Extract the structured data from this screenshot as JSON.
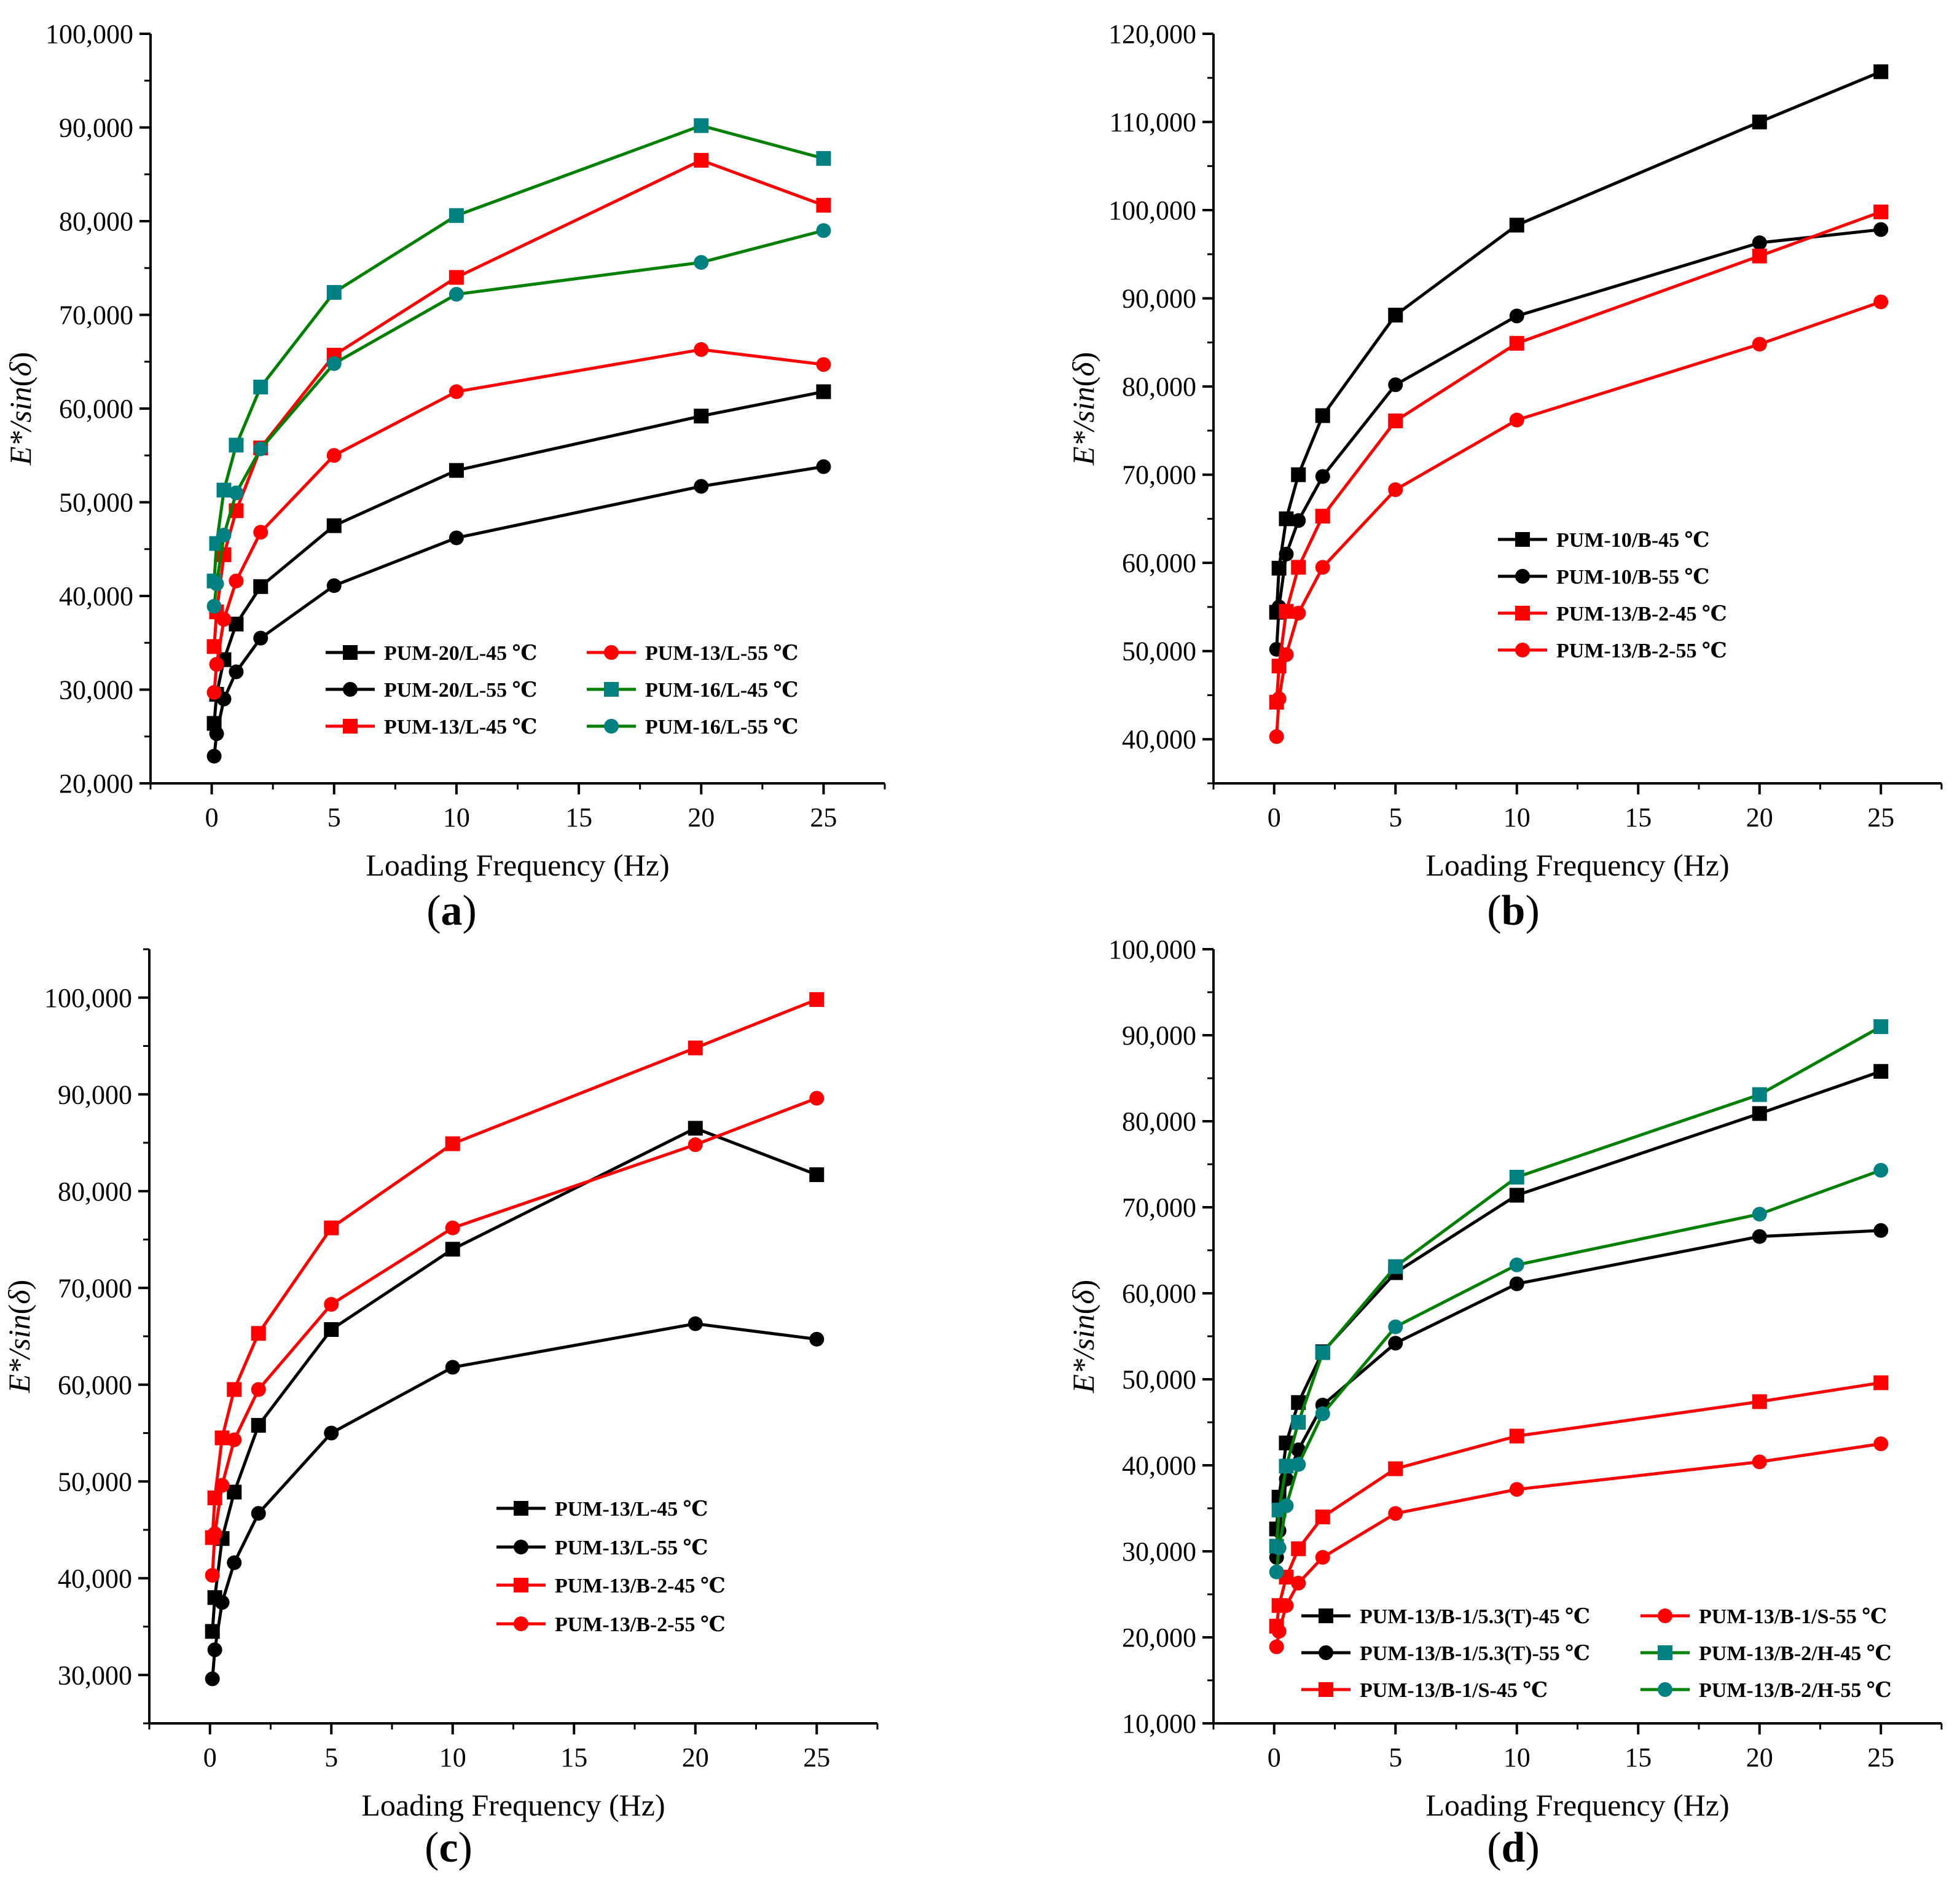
{
  "colors": {
    "black": "#000000",
    "red": "#ff0000",
    "green": "#008000",
    "teal": "#008080"
  },
  "chart_data": [
    {
      "type": "line",
      "caption_letter": "a",
      "xlabel": "Loading Frequency (Hz)",
      "ylabel": "E*/sin(δ)",
      "ylabel_parts": [
        "E*/",
        "sin",
        "(",
        "δ",
        ")"
      ],
      "xlim": [
        -2.5,
        27.5
      ],
      "ylim": [
        20000,
        100000
      ],
      "xticks": [
        0,
        5,
        10,
        15,
        20,
        25
      ],
      "xtick_labels": [
        "0",
        "5",
        "10",
        "15",
        "20",
        "25"
      ],
      "yticks": [
        20000,
        30000,
        40000,
        50000,
        60000,
        70000,
        80000,
        90000,
        100000
      ],
      "ytick_labels": [
        "20,000",
        "30,000",
        "40,000",
        "50,000",
        "60,000",
        "70,000",
        "80,000",
        "90,000",
        "100,000"
      ],
      "legend_placement": "lower-right, two columns",
      "series": [
        {
          "name": "PUM-20/L-45 ℃",
          "color": "#000000",
          "line": "#000000",
          "marker": "square",
          "x": [
            0.1,
            0.2,
            0.5,
            1,
            2,
            5,
            10,
            20,
            25
          ],
          "values": [
            26400,
            29500,
            33200,
            37000,
            41000,
            47500,
            53400,
            59200,
            61800
          ]
        },
        {
          "name": "PUM-20/L-55 ℃",
          "color": "#000000",
          "line": "#000000",
          "marker": "circle",
          "x": [
            0.1,
            0.2,
            0.5,
            1,
            2,
            5,
            10,
            20,
            25
          ],
          "values": [
            22900,
            25300,
            29000,
            31900,
            35500,
            41100,
            46200,
            51700,
            53800
          ]
        },
        {
          "name": "PUM-13/L-45 ℃",
          "color": "#ff0000",
          "line": "#ff0000",
          "marker": "square",
          "x": [
            0.1,
            0.2,
            0.5,
            1,
            2,
            5,
            10,
            20,
            25
          ],
          "values": [
            34600,
            38300,
            44400,
            49100,
            55800,
            65700,
            74000,
            86500,
            81700
          ]
        },
        {
          "name": "PUM-13/L-55 ℃",
          "color": "#ff0000",
          "line": "#ff0000",
          "marker": "circle",
          "x": [
            0.1,
            0.2,
            0.5,
            1,
            2,
            5,
            10,
            20,
            25
          ],
          "values": [
            29700,
            32700,
            37500,
            41600,
            46800,
            55000,
            61800,
            66300,
            64700
          ]
        },
        {
          "name": "PUM-16/L-45 ℃",
          "color": "#008080",
          "line": "#008000",
          "marker": "square",
          "x": [
            0.1,
            0.2,
            0.5,
            1,
            2,
            5,
            10,
            20,
            25
          ],
          "values": [
            41600,
            45600,
            51300,
            56100,
            62300,
            72400,
            80600,
            90200,
            86700
          ]
        },
        {
          "name": "PUM-16/L-55 ℃",
          "color": "#008080",
          "line": "#008000",
          "marker": "circle",
          "x": [
            0.1,
            0.2,
            0.5,
            1,
            2,
            5,
            10,
            20,
            25
          ],
          "values": [
            38900,
            41300,
            46500,
            51000,
            55700,
            64800,
            72200,
            75600,
            79000
          ]
        }
      ]
    },
    {
      "type": "line",
      "caption_letter": "b",
      "xlabel": "Loading Frequency (Hz)",
      "ylabel": "E*/sin(δ)",
      "ylabel_parts": [
        "E*/",
        "sin",
        "(",
        "δ",
        ")"
      ],
      "xlim": [
        -2.5,
        27.5
      ],
      "ylim": [
        35000,
        120000
      ],
      "xticks": [
        0,
        5,
        10,
        15,
        20,
        25
      ],
      "xtick_labels": [
        "0",
        "5",
        "10",
        "15",
        "20",
        "25"
      ],
      "yticks": [
        40000,
        50000,
        60000,
        70000,
        80000,
        90000,
        100000,
        110000,
        120000
      ],
      "ytick_labels": [
        "40,000",
        "50,000",
        "60,000",
        "70,000",
        "80,000",
        "90,000",
        "100,000",
        "110,000",
        "120,000"
      ],
      "legend_placement": "center, one column",
      "series": [
        {
          "name": "PUM-10/B-45 ℃",
          "color": "#000000",
          "line": "#000000",
          "marker": "square",
          "x": [
            0.1,
            0.2,
            0.5,
            1,
            2,
            5,
            10,
            20,
            25
          ],
          "values": [
            54400,
            59400,
            65000,
            70000,
            76700,
            88100,
            98300,
            110000,
            115700
          ]
        },
        {
          "name": "PUM-10/B-55 ℃",
          "color": "#000000",
          "line": "#000000",
          "marker": "circle",
          "x": [
            0.1,
            0.2,
            0.5,
            1,
            2,
            5,
            10,
            20,
            25
          ],
          "values": [
            50200,
            55000,
            61000,
            64800,
            69800,
            80200,
            88000,
            96300,
            97800
          ]
        },
        {
          "name": "PUM-13/B-2-45 ℃",
          "color": "#ff0000",
          "line": "#ff0000",
          "marker": "square",
          "x": [
            0.1,
            0.2,
            0.5,
            1,
            2,
            5,
            10,
            20,
            25
          ],
          "values": [
            44200,
            48300,
            54500,
            59500,
            65300,
            76100,
            84900,
            94800,
            99800
          ]
        },
        {
          "name": "PUM-13/B-2-55 ℃",
          "color": "#ff0000",
          "line": "#ff0000",
          "marker": "circle",
          "x": [
            0.1,
            0.2,
            0.5,
            1,
            2,
            5,
            10,
            20,
            25
          ],
          "values": [
            40300,
            44600,
            49600,
            54300,
            59500,
            68300,
            76200,
            84800,
            89600
          ]
        }
      ]
    },
    {
      "type": "line",
      "caption_letter": "c",
      "xlabel": "Loading Frequency (Hz)",
      "ylabel": "E*/sin(δ)",
      "ylabel_parts": [
        "E*/",
        "sin",
        "(",
        "δ",
        ")"
      ],
      "xlim": [
        -2.5,
        27.5
      ],
      "ylim": [
        25000,
        105000
      ],
      "xticks": [
        0,
        5,
        10,
        15,
        20,
        25
      ],
      "xtick_labels": [
        "0",
        "5",
        "10",
        "15",
        "20",
        "25"
      ],
      "yticks": [
        30000,
        40000,
        50000,
        60000,
        70000,
        80000,
        90000,
        100000
      ],
      "ytick_labels": [
        "30,000",
        "40,000",
        "50,000",
        "60,000",
        "70,000",
        "80,000",
        "90,000",
        "100,000"
      ],
      "legend_placement": "lower-center, one column",
      "series": [
        {
          "name": "PUM-13/L-45 ℃",
          "color": "#000000",
          "line": "#000000",
          "marker": "square",
          "x": [
            0.1,
            0.2,
            0.5,
            1,
            2,
            5,
            10,
            20,
            25
          ],
          "values": [
            34500,
            38000,
            44100,
            48900,
            55800,
            65700,
            74000,
            86500,
            81700
          ]
        },
        {
          "name": "PUM-13/L-55 ℃",
          "color": "#000000",
          "line": "#000000",
          "marker": "circle",
          "x": [
            0.1,
            0.2,
            0.5,
            1,
            2,
            5,
            10,
            20,
            25
          ],
          "values": [
            29600,
            32600,
            37500,
            41600,
            46700,
            55000,
            61800,
            66300,
            64700
          ]
        },
        {
          "name": "PUM-13/B-2-45 ℃",
          "color": "#ff0000",
          "line": "#ff0000",
          "marker": "square",
          "x": [
            0.1,
            0.2,
            0.5,
            1,
            2,
            5,
            10,
            20,
            25
          ],
          "values": [
            44200,
            48300,
            54500,
            59500,
            65300,
            76200,
            84900,
            94800,
            99800
          ]
        },
        {
          "name": "PUM-13/B-2-55 ℃",
          "color": "#ff0000",
          "line": "#ff0000",
          "marker": "circle",
          "x": [
            0.1,
            0.2,
            0.5,
            1,
            2,
            5,
            10,
            20,
            25
          ],
          "values": [
            40300,
            44600,
            49600,
            54300,
            59500,
            68300,
            76200,
            84800,
            89600
          ]
        }
      ]
    },
    {
      "type": "line",
      "caption_letter": "d",
      "xlabel": "Loading Frequency (Hz)",
      "ylabel": "E*/sin(δ)",
      "ylabel_parts": [
        "E*/",
        "sin",
        "(",
        "δ",
        ")"
      ],
      "xlim": [
        -2.5,
        27.5
      ],
      "ylim": [
        10000,
        100000
      ],
      "xticks": [
        0,
        5,
        10,
        15,
        20,
        25
      ],
      "xtick_labels": [
        "0",
        "5",
        "10",
        "15",
        "20",
        "25"
      ],
      "yticks": [
        10000,
        20000,
        30000,
        40000,
        50000,
        60000,
        70000,
        80000,
        90000,
        100000
      ],
      "ytick_labels": [
        "10,000",
        "20,000",
        "30,000",
        "40,000",
        "50,000",
        "60,000",
        "70,000",
        "80,000",
        "90,000",
        "100,000"
      ],
      "legend_placement": "bottom, two columns",
      "series": [
        {
          "name": "PUM-13/B-1/5.3(T)-45 ℃",
          "color": "#000000",
          "line": "#000000",
          "marker": "square",
          "x": [
            0.1,
            0.2,
            0.5,
            1,
            2,
            5,
            10,
            20,
            25
          ],
          "values": [
            32600,
            36300,
            42600,
            47300,
            53200,
            62400,
            71400,
            80900,
            85800
          ]
        },
        {
          "name": "PUM-13/B-1/5.3(T)-55 ℃",
          "color": "#000000",
          "line": "#000000",
          "marker": "circle",
          "x": [
            0.1,
            0.2,
            0.5,
            1,
            2,
            5,
            10,
            20,
            25
          ],
          "values": [
            29300,
            32400,
            38400,
            41800,
            47000,
            54200,
            61100,
            66600,
            67300
          ]
        },
        {
          "name": "PUM-13/B-1/S-45 ℃",
          "color": "#ff0000",
          "line": "#ff0000",
          "marker": "square",
          "x": [
            0.1,
            0.2,
            0.5,
            1,
            2,
            5,
            10,
            20,
            25
          ],
          "values": [
            21300,
            23700,
            27000,
            30300,
            34000,
            39600,
            43400,
            47400,
            49600
          ]
        },
        {
          "name": "PUM-13/B-1/S-55 ℃",
          "color": "#ff0000",
          "line": "#ff0000",
          "marker": "circle",
          "x": [
            0.1,
            0.2,
            0.5,
            1,
            2,
            5,
            10,
            20,
            25
          ],
          "values": [
            18900,
            20700,
            23700,
            26300,
            29300,
            34400,
            37200,
            40400,
            42500
          ]
        },
        {
          "name": "PUM-13/B-2/H-45 ℃",
          "color": "#008080",
          "line": "#008000",
          "marker": "square",
          "x": [
            0.1,
            0.2,
            0.5,
            1,
            2,
            5,
            10,
            20,
            25
          ],
          "values": [
            30600,
            34800,
            39900,
            45000,
            53100,
            63100,
            73500,
            83100,
            91000
          ]
        },
        {
          "name": "PUM-13/B-2/H-55 ℃",
          "color": "#008080",
          "line": "#008000",
          "marker": "circle",
          "x": [
            0.1,
            0.2,
            0.5,
            1,
            2,
            5,
            10,
            20,
            25
          ],
          "values": [
            27600,
            30400,
            35300,
            40100,
            46000,
            56100,
            63300,
            69200,
            74300
          ]
        }
      ]
    }
  ]
}
